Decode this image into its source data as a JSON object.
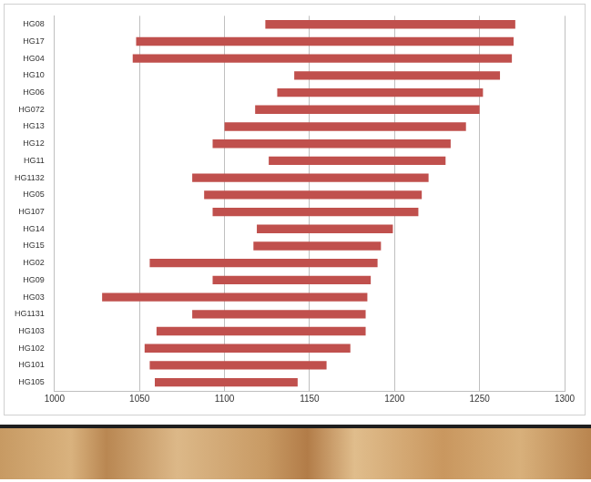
{
  "chart_data": {
    "type": "bar",
    "orientation": "horizontal",
    "categories": [
      "HG08",
      "HG17",
      "HG04",
      "HG10",
      "HG06",
      "HG072",
      "HG13",
      "HG12",
      "HG11",
      "HG1132",
      "HG05",
      "HG107",
      "HG14",
      "HG15",
      "HG02",
      "HG09",
      "HG03",
      "HG1131",
      "HG103",
      "HG102",
      "HG101",
      "HG105"
    ],
    "values": [
      [
        1124,
        1271
      ],
      [
        1048,
        1270
      ],
      [
        1046,
        1269
      ],
      [
        1141,
        1262
      ],
      [
        1131,
        1252
      ],
      [
        1118,
        1250
      ],
      [
        1100,
        1242
      ],
      [
        1093,
        1233
      ],
      [
        1126,
        1230
      ],
      [
        1081,
        1220
      ],
      [
        1088,
        1216
      ],
      [
        1093,
        1214
      ],
      [
        1119,
        1199
      ],
      [
        1117,
        1192
      ],
      [
        1056,
        1190
      ],
      [
        1093,
        1186
      ],
      [
        1028,
        1184
      ],
      [
        1081,
        1183
      ],
      [
        1060,
        1183
      ],
      [
        1053,
        1174
      ],
      [
        1056,
        1160
      ],
      [
        1059,
        1143
      ]
    ],
    "color": "#c0504d",
    "xlim": [
      1000,
      1300
    ],
    "xticks": [
      1000,
      1050,
      1100,
      1150,
      1200,
      1250,
      1300
    ],
    "grid": true
  }
}
